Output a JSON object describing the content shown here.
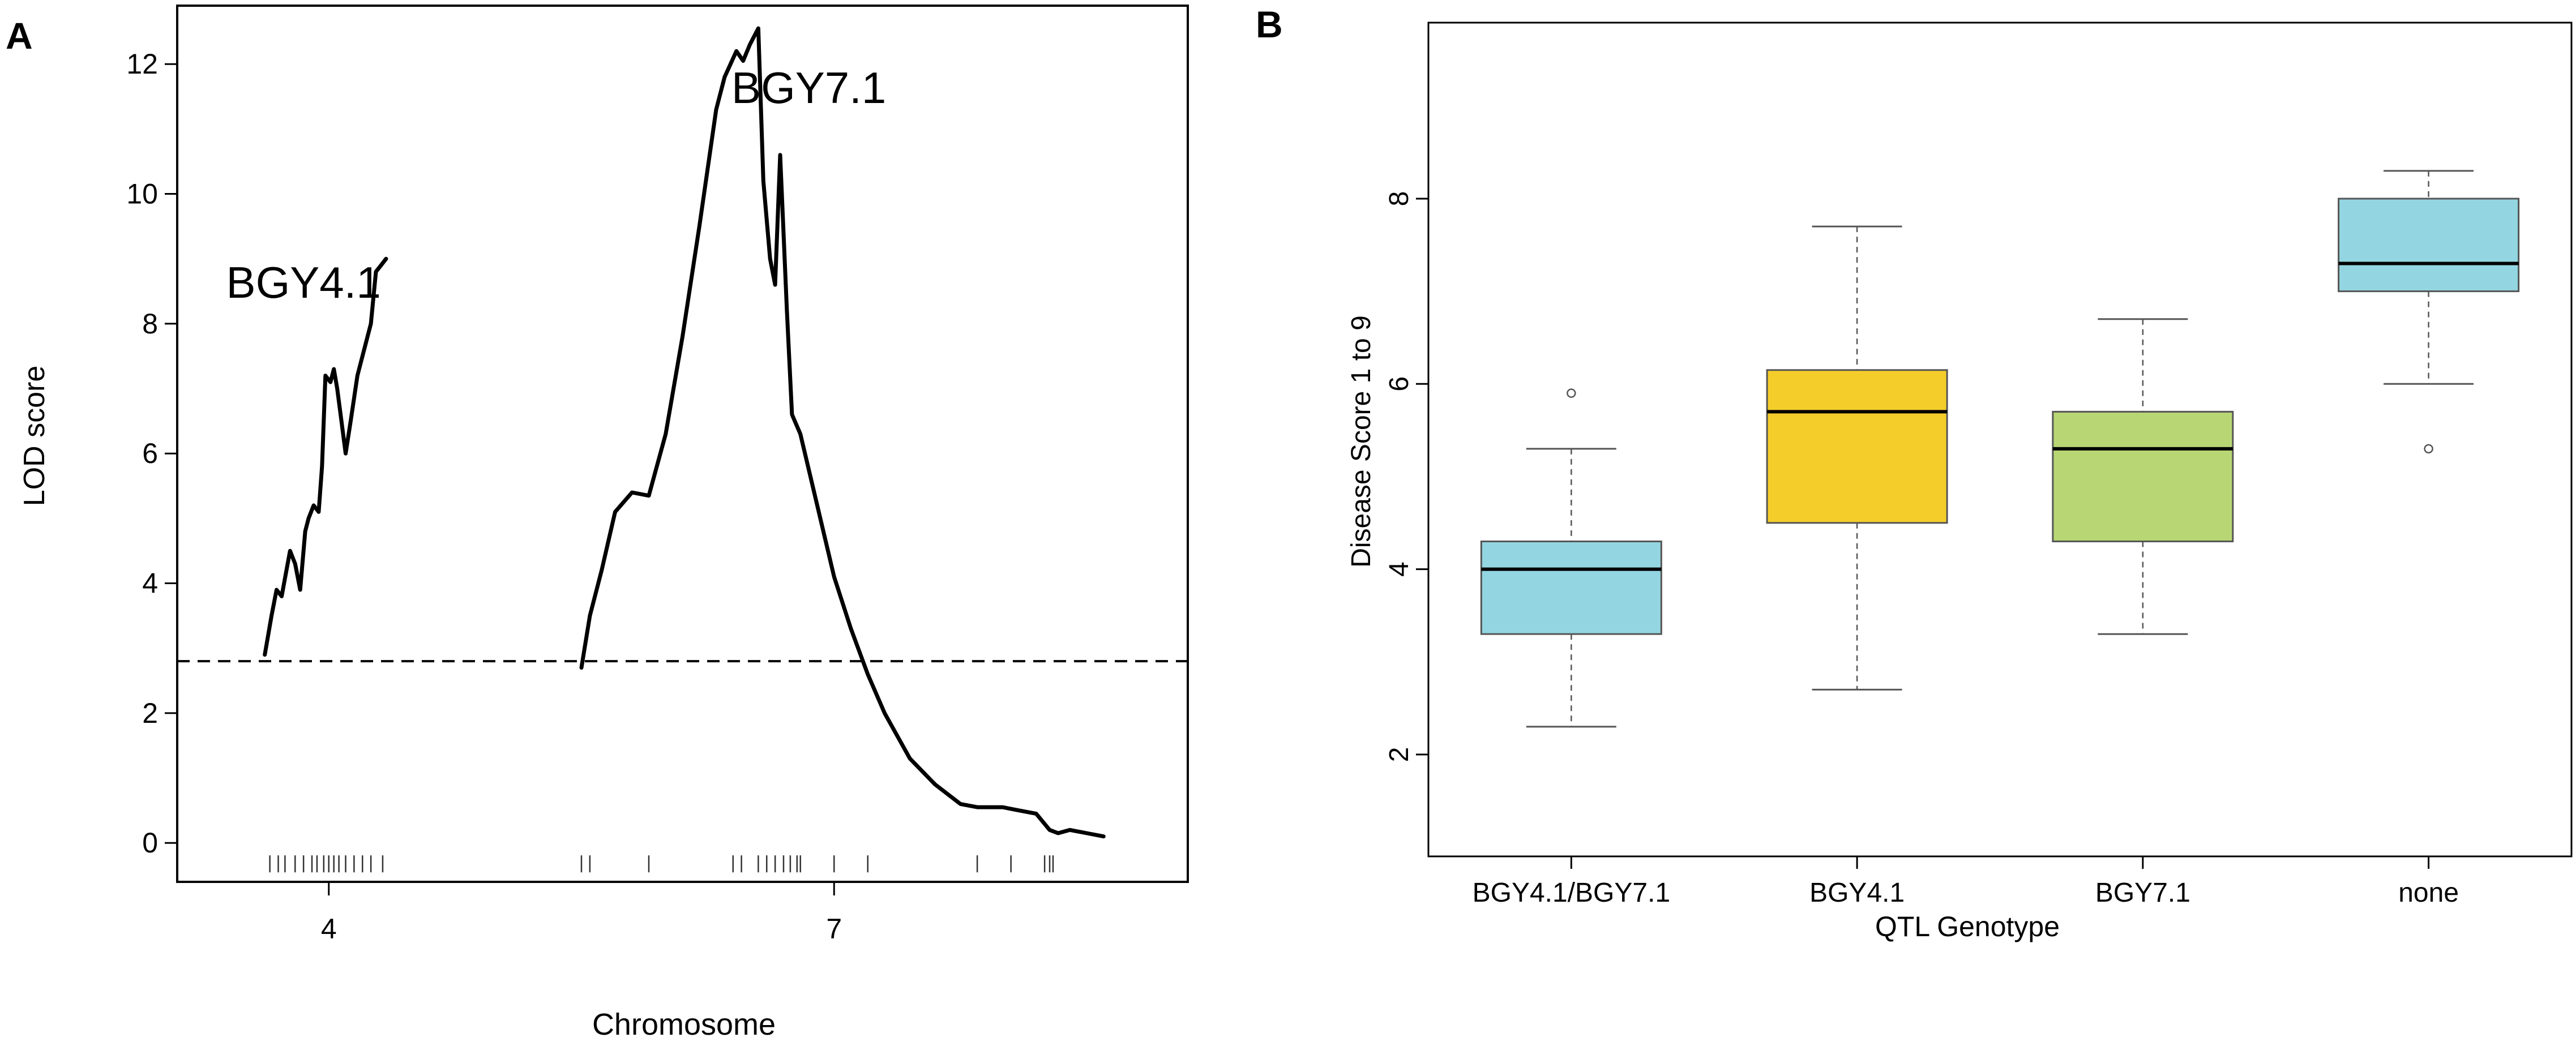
{
  "panels": {
    "a": {
      "letter": "A"
    },
    "b": {
      "letter": "B"
    }
  },
  "colors": {
    "axis": "#000000",
    "line": "#000000",
    "cyan_box": "#93d6e1",
    "yellow_box": "#f5cd2a",
    "green_box": "#b8d774",
    "box_stroke": "#555555"
  },
  "chart_data": [
    {
      "type": "line",
      "title": "",
      "xlabel": "Chromosome",
      "ylabel": "LOD score",
      "ylim": [
        -0.6,
        12.9
      ],
      "xlim": [
        3.1,
        9.1
      ],
      "x_ticks": [
        4,
        7
      ],
      "x_tick_labels": [
        "4",
        "7"
      ],
      "y_ticks": [
        0,
        2,
        4,
        6,
        8,
        10,
        12
      ],
      "y_tick_labels": [
        "0",
        "2",
        "4",
        "6",
        "8",
        "10",
        "12"
      ],
      "threshold": 2.8,
      "annotations": [
        {
          "label": "BGY4.1",
          "x": 3.85,
          "y": 8.4
        },
        {
          "label": "BGY7.1",
          "x": 6.85,
          "y": 11.4
        }
      ],
      "marker_positions": [
        3.65,
        3.7,
        3.74,
        3.8,
        3.85,
        3.9,
        3.93,
        3.97,
        4.0,
        4.03,
        4.06,
        4.1,
        4.15,
        4.2,
        4.25,
        4.32,
        5.5,
        5.55,
        5.9,
        6.4,
        6.45,
        6.55,
        6.6,
        6.65,
        6.7,
        6.74,
        6.78,
        6.8,
        7.0,
        7.2,
        7.85,
        8.05,
        8.25,
        8.28,
        8.3
      ],
      "series": [
        {
          "name": "BGY4.1",
          "x": [
            3.62,
            3.66,
            3.69,
            3.72,
            3.77,
            3.8,
            3.83,
            3.86,
            3.88,
            3.91,
            3.94,
            3.96,
            3.98,
            4.01,
            4.03,
            4.05,
            4.07,
            4.1,
            4.13,
            4.17,
            4.21,
            4.25,
            4.28,
            4.31,
            4.34
          ],
          "y": [
            2.9,
            3.5,
            3.9,
            3.8,
            4.5,
            4.3,
            3.9,
            4.8,
            5.0,
            5.2,
            5.1,
            5.8,
            7.2,
            7.1,
            7.3,
            7.0,
            6.6,
            6.0,
            6.5,
            7.2,
            7.6,
            8.0,
            8.8,
            8.9,
            9.0
          ]
        },
        {
          "name": "BGY7.1",
          "x": [
            5.5,
            5.55,
            5.62,
            5.7,
            5.8,
            5.9,
            6.0,
            6.1,
            6.2,
            6.3,
            6.35,
            6.42,
            6.46,
            6.5,
            6.55,
            6.58,
            6.62,
            6.65,
            6.68,
            6.72,
            6.75,
            6.8,
            6.9,
            7.0,
            7.1,
            7.2,
            7.3,
            7.45,
            7.6,
            7.75,
            7.85,
            8.0,
            8.1,
            8.2,
            8.28,
            8.33,
            8.4,
            8.5,
            8.6
          ],
          "y": [
            2.7,
            3.5,
            4.2,
            5.1,
            5.4,
            5.35,
            6.3,
            7.8,
            9.5,
            11.3,
            11.8,
            12.2,
            12.05,
            12.3,
            12.55,
            10.2,
            9.0,
            8.6,
            10.6,
            8.2,
            6.6,
            6.3,
            5.2,
            4.1,
            3.3,
            2.6,
            2.0,
            1.3,
            0.9,
            0.6,
            0.55,
            0.55,
            0.5,
            0.45,
            0.2,
            0.15,
            0.2,
            0.15,
            0.1
          ]
        }
      ]
    },
    {
      "type": "box",
      "title": "",
      "xlabel": "QTL Genotype",
      "ylabel": "Disease Score 1 to 9",
      "ylim": [
        0.9,
        9.9
      ],
      "y_ticks": [
        2,
        4,
        6,
        8
      ],
      "y_tick_labels": [
        "2",
        "4",
        "6",
        "8"
      ],
      "categories": [
        "BGY4.1/BGY7.1",
        "BGY4.1",
        "BGY7.1",
        "none"
      ],
      "boxes": [
        {
          "label": "BGY4.1/BGY7.1",
          "min": 2.3,
          "q1": 3.3,
          "median": 4.0,
          "q3": 4.3,
          "max": 5.3,
          "outliers": [
            5.9
          ],
          "color": "#93d6e1"
        },
        {
          "label": "BGY4.1",
          "min": 2.7,
          "q1": 4.5,
          "median": 5.7,
          "q3": 6.15,
          "max": 7.7,
          "outliers": [],
          "color": "#f5cd2a"
        },
        {
          "label": "BGY7.1",
          "min": 3.3,
          "q1": 4.3,
          "median": 5.3,
          "q3": 5.7,
          "max": 6.7,
          "outliers": [],
          "color": "#b8d774"
        },
        {
          "label": "none",
          "min": 6.0,
          "q1": 7.0,
          "median": 7.3,
          "q3": 8.0,
          "max": 8.3,
          "outliers": [
            5.3
          ],
          "color": "#93d6e1"
        }
      ]
    }
  ]
}
